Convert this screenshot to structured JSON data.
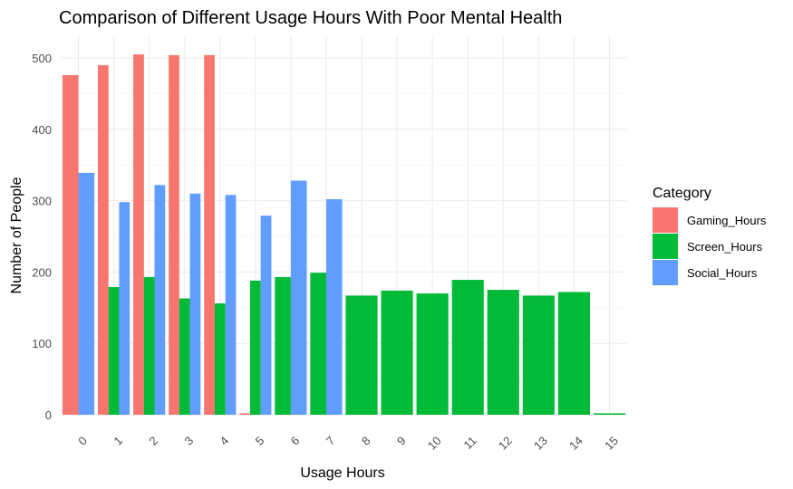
{
  "chart_data": {
    "type": "bar",
    "title": "Comparison of Different Usage Hours With Poor Mental Health",
    "xlabel": "Usage Hours",
    "ylabel": "Number of People",
    "categories": [
      "0",
      "1",
      "2",
      "3",
      "4",
      "5",
      "6",
      "7",
      "8",
      "9",
      "10",
      "11",
      "12",
      "13",
      "14",
      "15"
    ],
    "ylim": [
      0,
      530
    ],
    "yticks": [
      0,
      100,
      200,
      300,
      400,
      500
    ],
    "grid": true,
    "legend": {
      "title": "Category",
      "position": "right"
    },
    "series": [
      {
        "name": "Gaming_Hours",
        "color": "#F8766D",
        "values": [
          476,
          490,
          505,
          504,
          504,
          2,
          null,
          null,
          null,
          null,
          null,
          null,
          null,
          null,
          null,
          null
        ]
      },
      {
        "name": "Screen_Hours",
        "color": "#00BA38",
        "values": [
          null,
          179,
          193,
          163,
          156,
          188,
          193,
          199,
          167,
          174,
          170,
          189,
          175,
          167,
          172,
          2
        ]
      },
      {
        "name": "Social_Hours",
        "color": "#619CFF",
        "values": [
          339,
          298,
          322,
          310,
          308,
          279,
          328,
          302,
          null,
          null,
          null,
          null,
          null,
          null,
          null,
          null
        ]
      }
    ]
  }
}
